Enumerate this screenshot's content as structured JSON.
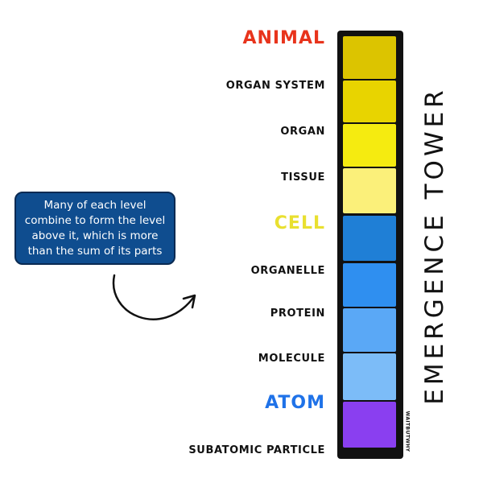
{
  "tower": {
    "title": "EMERGENCE TOWER",
    "signature": "WAITBUTWHY",
    "levels": [
      {
        "label": "ANIMAL",
        "emphasis": "major",
        "label_color": "#e8341c",
        "block_color": "#dcc400"
      },
      {
        "label": "ORGAN SYSTEM",
        "emphasis": "minor",
        "label_color": "#111111",
        "block_color": "#e8d400"
      },
      {
        "label": "ORGAN",
        "emphasis": "minor",
        "label_color": "#111111",
        "block_color": "#f5eb10"
      },
      {
        "label": "TISSUE",
        "emphasis": "minor",
        "label_color": "#111111",
        "block_color": "#fbf07a"
      },
      {
        "label": "CELL",
        "emphasis": "major",
        "label_color": "#e9e030",
        "block_color": "#1f7fd6"
      },
      {
        "label": "ORGANELLE",
        "emphasis": "minor",
        "label_color": "#111111",
        "block_color": "#2f8ff0"
      },
      {
        "label": "PROTEIN",
        "emphasis": "minor",
        "label_color": "#111111",
        "block_color": "#5aa8f6"
      },
      {
        "label": "MOLECULE",
        "emphasis": "minor",
        "label_color": "#111111",
        "block_color": "#7cbcf8"
      },
      {
        "label": "ATOM",
        "emphasis": "major",
        "label_color": "#1f72e8",
        "block_color": "#8a3ff0"
      },
      {
        "label": "SUBATOMIC PARTICLE",
        "emphasis": "minor",
        "label_color": "#111111",
        "block_color": null
      }
    ]
  },
  "callout": {
    "text": "Many of each level combine to form the level above it, which is more than the sum of its parts",
    "background_color": "#0f4d8f",
    "icon": "curved-arrow-icon"
  }
}
